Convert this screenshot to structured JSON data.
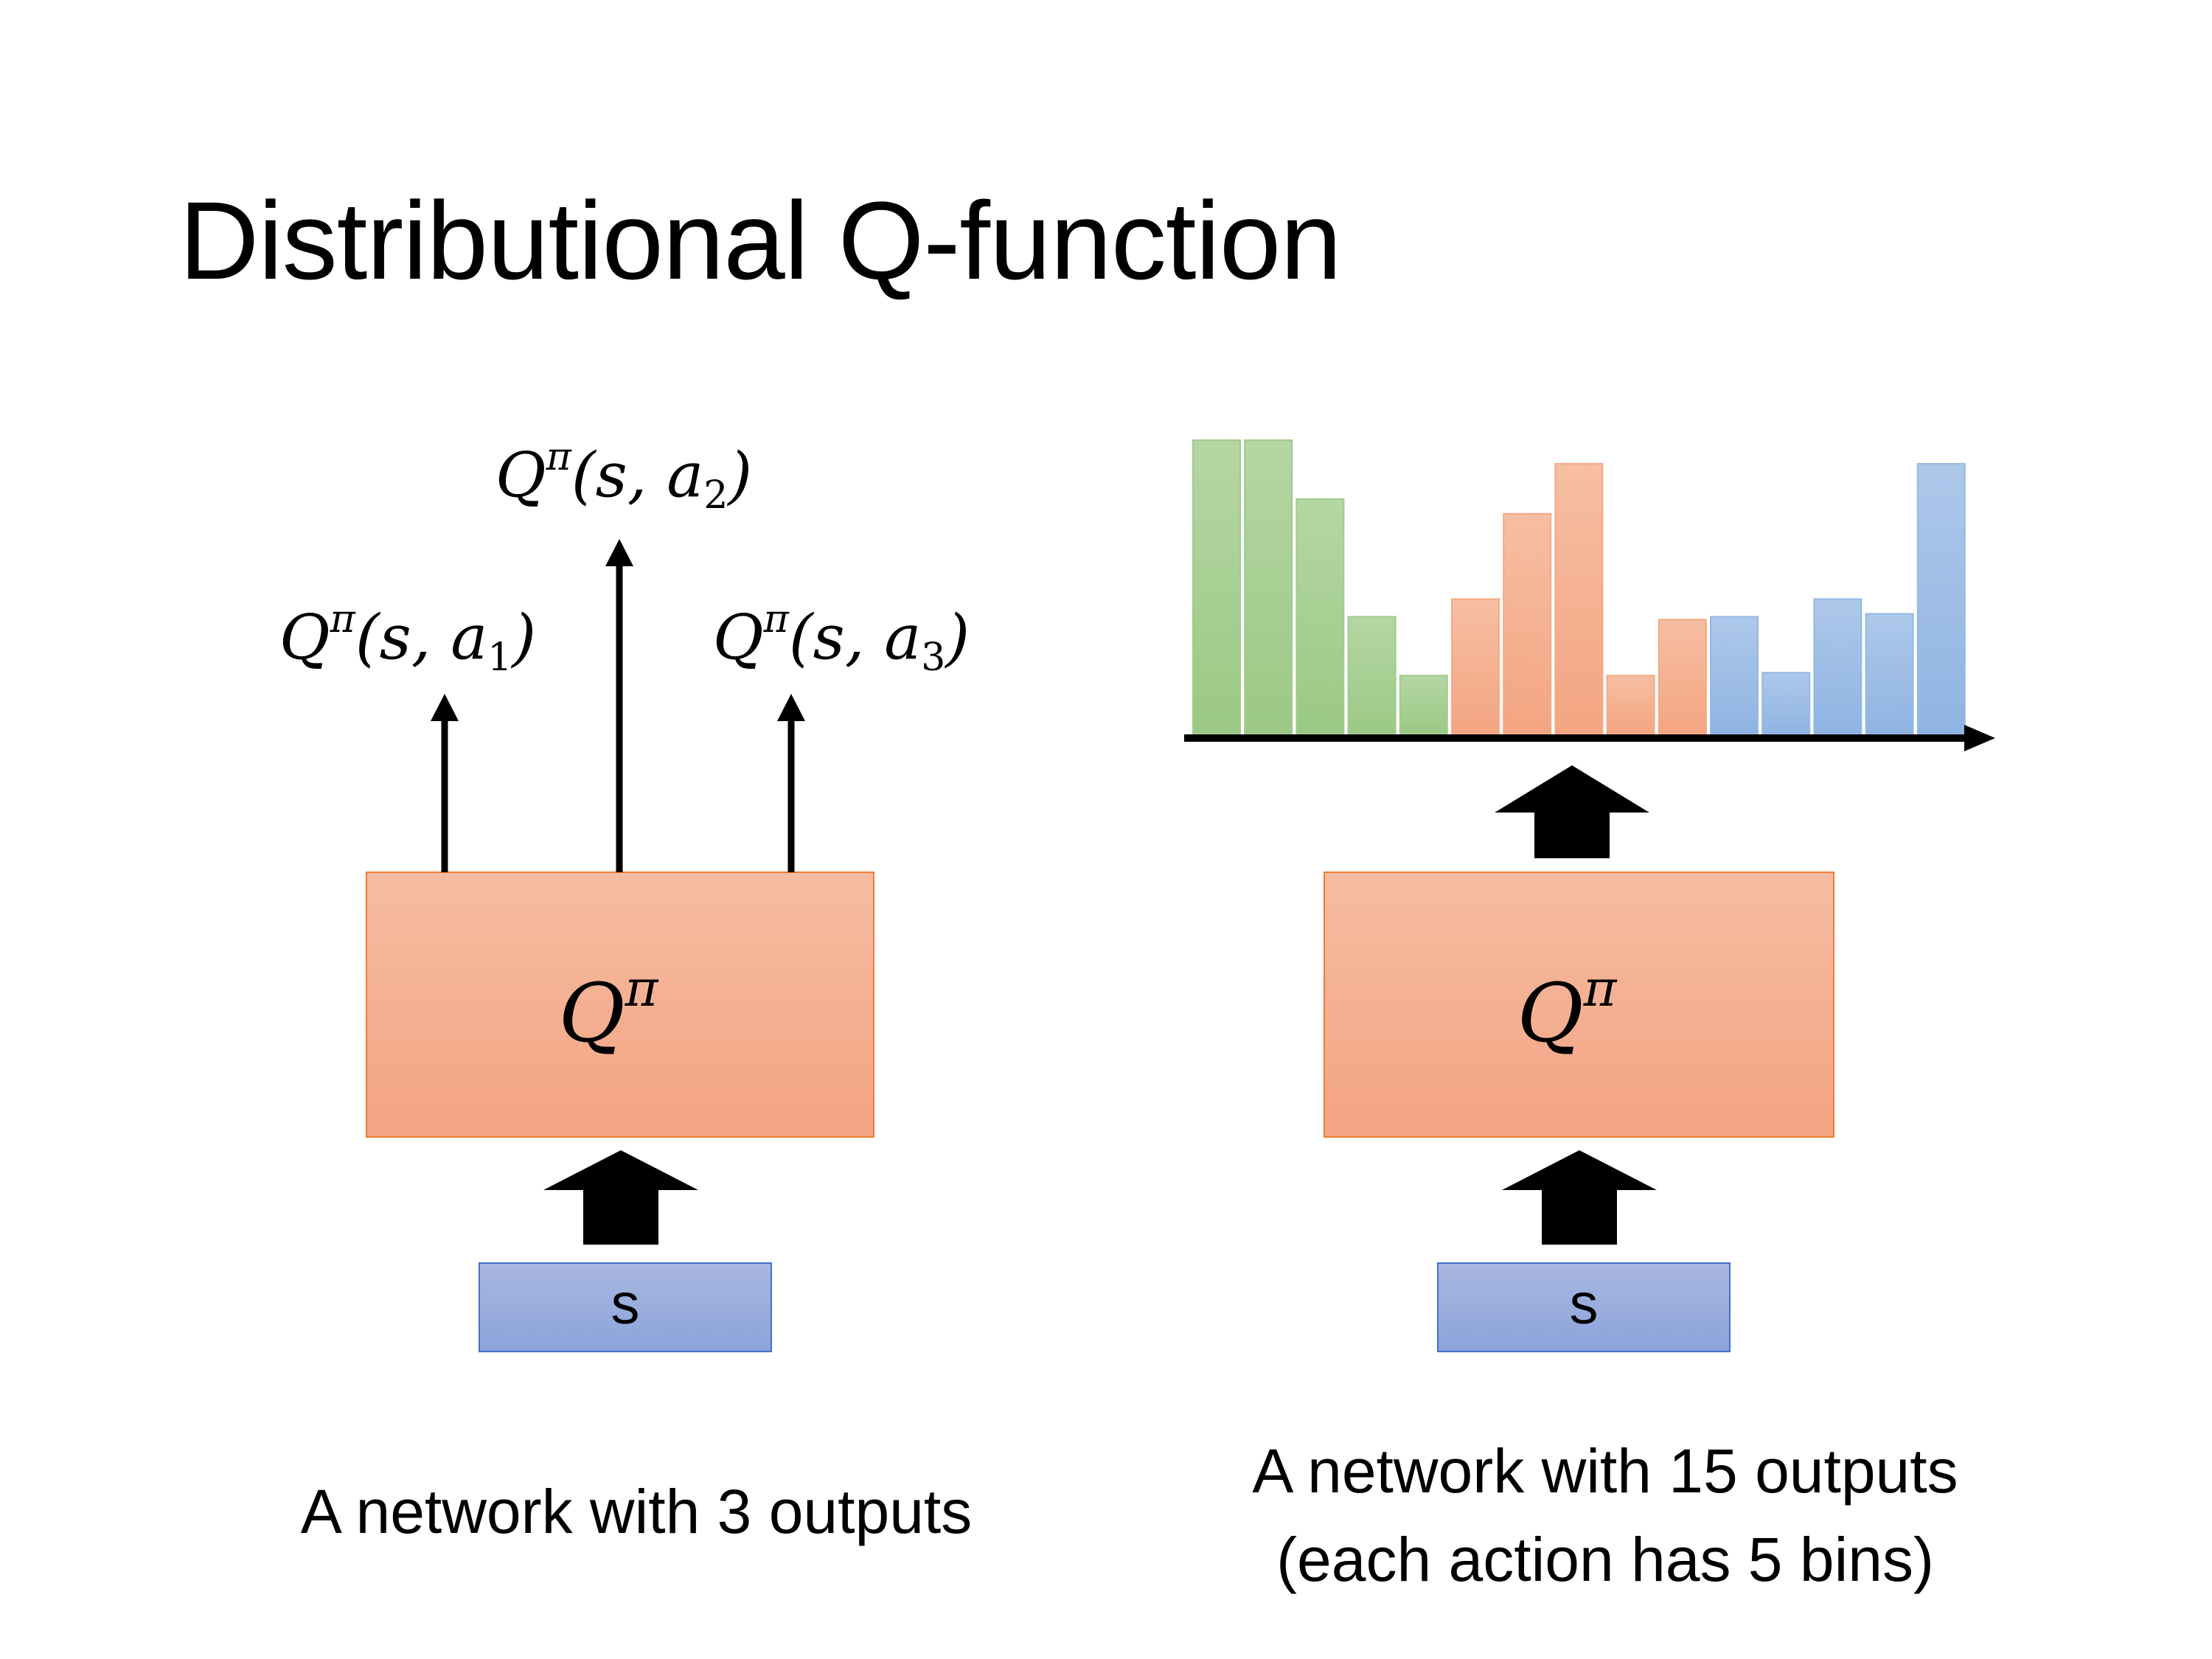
{
  "title": "Distributional Q-function",
  "left": {
    "outputs": [
      {
        "q": "Q",
        "pi": "π",
        "open": "(s, a",
        "sub": "1",
        "close": ")"
      },
      {
        "q": "Q",
        "pi": "π",
        "open": "(s, a",
        "sub": "2",
        "close": ")"
      },
      {
        "q": "Q",
        "pi": "π",
        "open": "(s, a",
        "sub": "3",
        "close": ")"
      }
    ],
    "network_q": "Q",
    "network_pi": "π",
    "input": "s",
    "caption": "A network with 3 outputs"
  },
  "right": {
    "network_q": "Q",
    "network_pi": "π",
    "input": "s",
    "caption_line1": "A network with 15 outputs",
    "caption_line2": "(each action has 5 bins)"
  },
  "colors": {
    "network_fill_top": "#f5bca2",
    "network_fill_bottom": "#f4a482",
    "network_border": "#ed7d31",
    "input_fill_top": "#a9b7e0",
    "input_fill_bottom": "#8ba4db",
    "input_border": "#4472c4",
    "action1": "#a0cc8a",
    "action2": "#f4a985",
    "action3": "#95b9e4"
  },
  "chart_data": {
    "type": "bar",
    "groups": [
      {
        "action": "a1",
        "color": "#a0cc8a",
        "values": [
          100,
          100,
          80,
          40,
          20
        ]
      },
      {
        "action": "a2",
        "color": "#f4a985",
        "values": [
          46,
          75,
          92,
          20,
          39
        ]
      },
      {
        "action": "a3",
        "color": "#95b9e4",
        "values": [
          40,
          21,
          46,
          41,
          92
        ]
      }
    ],
    "ylim": [
      0,
      100
    ],
    "grid": false
  }
}
